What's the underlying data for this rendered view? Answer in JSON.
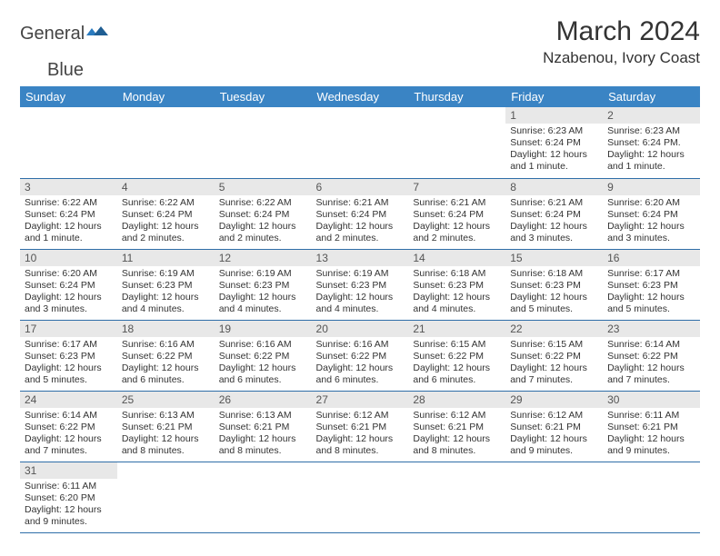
{
  "brand": {
    "name_a": "General",
    "name_b": "Blue"
  },
  "title": "March 2024",
  "location": "Nzabenou, Ivory Coast",
  "colors": {
    "header_bg": "#3a84c4",
    "header_fg": "#ffffff",
    "daynum_bg": "#e8e8e8",
    "row_border": "#2f6ea8",
    "brand_blue": "#2b7bbf"
  },
  "weekdays": [
    "Sunday",
    "Monday",
    "Tuesday",
    "Wednesday",
    "Thursday",
    "Friday",
    "Saturday"
  ],
  "layout": {
    "first_weekday_index": 5,
    "days_in_month": 31
  },
  "days": {
    "1": {
      "sunrise": "6:23 AM",
      "sunset": "6:24 PM",
      "daylight": "12 hours and 1 minute."
    },
    "2": {
      "sunrise": "6:23 AM",
      "sunset": "6:24 PM.",
      "daylight": "12 hours and 1 minute."
    },
    "3": {
      "sunrise": "6:22 AM",
      "sunset": "6:24 PM",
      "daylight": "12 hours and 1 minute."
    },
    "4": {
      "sunrise": "6:22 AM",
      "sunset": "6:24 PM",
      "daylight": "12 hours and 2 minutes."
    },
    "5": {
      "sunrise": "6:22 AM",
      "sunset": "6:24 PM",
      "daylight": "12 hours and 2 minutes."
    },
    "6": {
      "sunrise": "6:21 AM",
      "sunset": "6:24 PM",
      "daylight": "12 hours and 2 minutes."
    },
    "7": {
      "sunrise": "6:21 AM",
      "sunset": "6:24 PM",
      "daylight": "12 hours and 2 minutes."
    },
    "8": {
      "sunrise": "6:21 AM",
      "sunset": "6:24 PM",
      "daylight": "12 hours and 3 minutes."
    },
    "9": {
      "sunrise": "6:20 AM",
      "sunset": "6:24 PM",
      "daylight": "12 hours and 3 minutes."
    },
    "10": {
      "sunrise": "6:20 AM",
      "sunset": "6:24 PM",
      "daylight": "12 hours and 3 minutes."
    },
    "11": {
      "sunrise": "6:19 AM",
      "sunset": "6:23 PM",
      "daylight": "12 hours and 4 minutes."
    },
    "12": {
      "sunrise": "6:19 AM",
      "sunset": "6:23 PM",
      "daylight": "12 hours and 4 minutes."
    },
    "13": {
      "sunrise": "6:19 AM",
      "sunset": "6:23 PM",
      "daylight": "12 hours and 4 minutes."
    },
    "14": {
      "sunrise": "6:18 AM",
      "sunset": "6:23 PM",
      "daylight": "12 hours and 4 minutes."
    },
    "15": {
      "sunrise": "6:18 AM",
      "sunset": "6:23 PM",
      "daylight": "12 hours and 5 minutes."
    },
    "16": {
      "sunrise": "6:17 AM",
      "sunset": "6:23 PM",
      "daylight": "12 hours and 5 minutes."
    },
    "17": {
      "sunrise": "6:17 AM",
      "sunset": "6:23 PM",
      "daylight": "12 hours and 5 minutes."
    },
    "18": {
      "sunrise": "6:16 AM",
      "sunset": "6:22 PM",
      "daylight": "12 hours and 6 minutes."
    },
    "19": {
      "sunrise": "6:16 AM",
      "sunset": "6:22 PM",
      "daylight": "12 hours and 6 minutes."
    },
    "20": {
      "sunrise": "6:16 AM",
      "sunset": "6:22 PM",
      "daylight": "12 hours and 6 minutes."
    },
    "21": {
      "sunrise": "6:15 AM",
      "sunset": "6:22 PM",
      "daylight": "12 hours and 6 minutes."
    },
    "22": {
      "sunrise": "6:15 AM",
      "sunset": "6:22 PM",
      "daylight": "12 hours and 7 minutes."
    },
    "23": {
      "sunrise": "6:14 AM",
      "sunset": "6:22 PM",
      "daylight": "12 hours and 7 minutes."
    },
    "24": {
      "sunrise": "6:14 AM",
      "sunset": "6:22 PM",
      "daylight": "12 hours and 7 minutes."
    },
    "25": {
      "sunrise": "6:13 AM",
      "sunset": "6:21 PM",
      "daylight": "12 hours and 8 minutes."
    },
    "26": {
      "sunrise": "6:13 AM",
      "sunset": "6:21 PM",
      "daylight": "12 hours and 8 minutes."
    },
    "27": {
      "sunrise": "6:12 AM",
      "sunset": "6:21 PM",
      "daylight": "12 hours and 8 minutes."
    },
    "28": {
      "sunrise": "6:12 AM",
      "sunset": "6:21 PM",
      "daylight": "12 hours and 8 minutes."
    },
    "29": {
      "sunrise": "6:12 AM",
      "sunset": "6:21 PM",
      "daylight": "12 hours and 9 minutes."
    },
    "30": {
      "sunrise": "6:11 AM",
      "sunset": "6:21 PM",
      "daylight": "12 hours and 9 minutes."
    },
    "31": {
      "sunrise": "6:11 AM",
      "sunset": "6:20 PM",
      "daylight": "12 hours and 9 minutes."
    }
  },
  "labels": {
    "sunrise": "Sunrise:",
    "sunset": "Sunset:",
    "daylight": "Daylight:"
  }
}
